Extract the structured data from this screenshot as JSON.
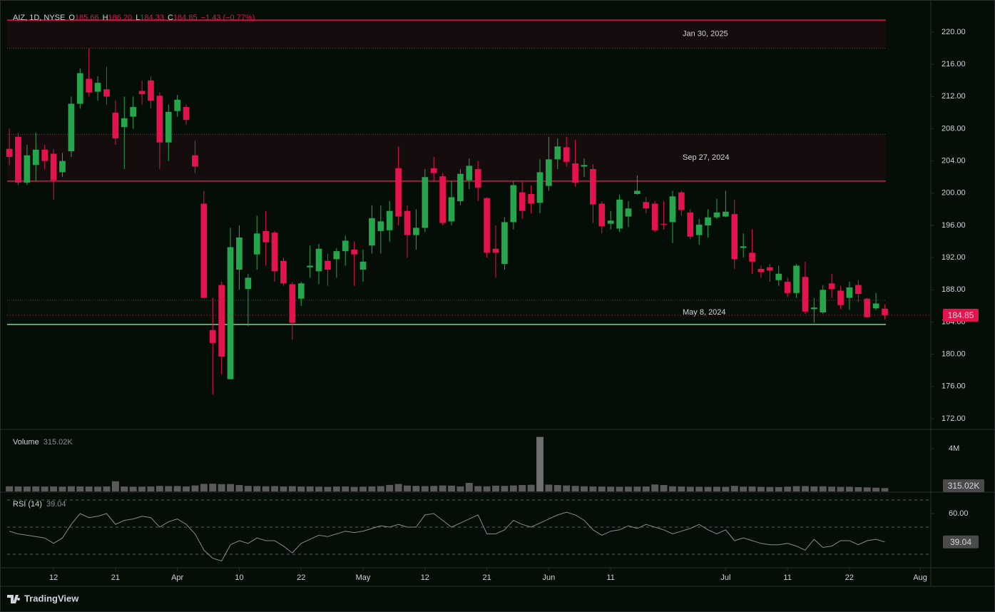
{
  "brand": "TradingView",
  "legend": {
    "symbol": "AIZ, 1D, NYSE",
    "keys": [
      "O",
      "H",
      "L",
      "C"
    ],
    "open": "185.66",
    "high": "186.20",
    "low": "184.33",
    "close": "184.85",
    "change": "−1.43 (−0.77%)"
  },
  "chart_data": [
    {
      "type": "candlestick",
      "up_color": "#26a64c",
      "down_color": "#e3134d",
      "open": [
        205.5,
        207,
        201.3,
        203.5,
        205.4,
        204.9,
        202.6,
        205.2,
        211.1,
        214.2,
        212.6,
        212.9,
        210,
        208.2,
        209.5,
        212.7,
        214,
        212.1,
        206.3,
        210.2,
        210.7,
        204.7,
        198.7,
        183,
        188.6,
        176.9,
        190.5,
        188.1,
        192.4,
        195.3,
        195.1,
        191.6,
        188.7,
        186.9,
        190.8,
        190.3,
        191.6,
        191.8,
        192.8,
        193,
        190.5,
        193.5,
        195.3,
        195.4,
        203.1,
        197.8,
        194.8,
        195.7,
        203.1,
        202.1,
        196.5,
        199,
        201.6,
        203,
        199.4,
        193.1,
        191.2,
        196.4,
        200.1,
        199.9,
        198.8,
        200.9,
        204.2,
        205.7,
        203.7,
        203.3,
        203,
        198.7,
        196.2,
        195.6,
        197.1,
        199.9,
        198.9,
        198.7,
        196.2,
        196.4,
        200.1,
        197.6,
        194.8,
        196,
        197,
        197.1,
        197.4,
        193.2,
        192.6,
        190.6,
        190.8,
        189.2,
        189,
        187.6,
        189.6,
        185.6,
        185.2,
        188.8,
        187.9,
        187,
        188.6,
        186.9,
        185.7,
        185.66
      ],
      "high": [
        208,
        207.5,
        206,
        207.5,
        206,
        205.5,
        205,
        212,
        215.5,
        218,
        214.5,
        215.7,
        211.5,
        212,
        212,
        214,
        214.5,
        212.5,
        211,
        212.2,
        211,
        206.5,
        200.3,
        187,
        189,
        195.7,
        196,
        190,
        197.2,
        197.8,
        195.3,
        192,
        189,
        189,
        193.5,
        193.7,
        192.5,
        193.2,
        194.7,
        194,
        193,
        198.5,
        198.5,
        199,
        205.8,
        198.5,
        198,
        203,
        204.5,
        202.5,
        201.5,
        203,
        204.3,
        204,
        199.5,
        196,
        197,
        201.5,
        201.5,
        201,
        204.2,
        207,
        206.8,
        207,
        206.6,
        204.3,
        203.6,
        199,
        197.8,
        199.8,
        199,
        202.2,
        199.5,
        199,
        199,
        200.3,
        200.3,
        198,
        196.8,
        198,
        199.3,
        200.3,
        199.2,
        195,
        195.5,
        191,
        191.2,
        191,
        189.5,
        191.2,
        191.5,
        187,
        188.6,
        190,
        188.5,
        189,
        189.2,
        187,
        187.6,
        186.2
      ],
      "low": [
        203.5,
        201,
        201,
        201.5,
        203,
        199.2,
        202,
        204.5,
        210.5,
        212,
        211.5,
        211,
        206,
        203,
        208,
        211,
        210.5,
        203,
        204,
        209.5,
        208.5,
        202.5,
        187,
        175,
        177.5,
        176.9,
        188,
        183.5,
        190.5,
        191,
        189,
        188.5,
        181.8,
        186,
        189.5,
        188.7,
        188.5,
        189.5,
        191,
        188.5,
        189,
        192.5,
        192.5,
        194,
        196,
        192,
        193,
        195.2,
        201.5,
        196,
        196,
        198.5,
        200.5,
        199,
        192,
        189.5,
        190.5,
        195.5,
        196.8,
        197.5,
        197.5,
        200.3,
        203,
        203.3,
        200.8,
        202,
        196.3,
        195,
        195.5,
        195.2,
        195.8,
        199.8,
        197.5,
        195.2,
        195.5,
        193.8,
        197.2,
        194.3,
        193.6,
        194.5,
        196.8,
        197,
        190.6,
        192,
        190,
        189.5,
        189,
        188.5,
        187.1,
        187,
        185,
        183.9,
        185,
        187,
        185.6,
        185.5,
        186.5,
        184.6,
        185.5,
        184.33
      ],
      "close": [
        204.5,
        201.3,
        204.7,
        205.4,
        204,
        201.6,
        204,
        211.1,
        214.9,
        212.5,
        213.7,
        212,
        206.8,
        209.3,
        210.7,
        212.3,
        211.5,
        206.3,
        210.1,
        211.6,
        209.1,
        203.3,
        187,
        181.4,
        179.7,
        193.3,
        194.5,
        189.5,
        195,
        193.9,
        190.3,
        188.8,
        183.9,
        188.8,
        191,
        193.1,
        190.5,
        192.8,
        194.1,
        192.4,
        191.5,
        196.9,
        196.5,
        197.8,
        197.1,
        194.8,
        195.7,
        202,
        202.5,
        196.3,
        199.5,
        202.4,
        203.4,
        200.7,
        192.6,
        192.6,
        196.4,
        201,
        197.8,
        198.7,
        202.6,
        204.2,
        205.8,
        203.9,
        201.3,
        203.5,
        198.6,
        195.9,
        196.6,
        199.2,
        198.1,
        200.3,
        198.1,
        195.4,
        196.1,
        199.6,
        197.9,
        194.6,
        196.1,
        197,
        197.6,
        197.7,
        191.8,
        193.4,
        191.5,
        190.2,
        190.4,
        190,
        187.6,
        191,
        185.3,
        185.8,
        188,
        188.1,
        186.1,
        188.3,
        187.5,
        184.6,
        186.3,
        184.85
      ],
      "ylim": [
        170.67,
        223.1
      ],
      "yticks": [
        {
          "value": 172,
          "label": "172.00"
        },
        {
          "value": 176,
          "label": "176.00"
        },
        {
          "value": 180,
          "label": "180.00"
        },
        {
          "value": 184,
          "label": "184.00"
        },
        {
          "value": 188,
          "label": "188.00"
        },
        {
          "value": 192,
          "label": "192.00"
        },
        {
          "value": 196,
          "label": "196.00"
        },
        {
          "value": 200,
          "label": "200.00"
        },
        {
          "value": 204,
          "label": "204.00"
        },
        {
          "value": 208,
          "label": "208.00"
        },
        {
          "value": 212,
          "label": "212.00"
        },
        {
          "value": 216,
          "label": "216.00"
        },
        {
          "value": 220,
          "label": "220.00"
        }
      ],
      "zones": [
        {
          "label": "Jan 30, 2025",
          "top": 221.5,
          "bottom": 218,
          "color": "#e3134d",
          "solid_edge": "top",
          "fill": "#150d0d"
        },
        {
          "label": "Sep 27, 2024",
          "top": 207.3,
          "bottom": 201.5,
          "color": "#e3134d",
          "solid_edge": "bottom",
          "fill": "#150d0d"
        },
        {
          "label": "May 8, 2024",
          "top": 186.7,
          "bottom": 183.7,
          "color": "#7fd08f",
          "solid_edge": "bottom",
          "fill": "#061008"
        }
      ]
    },
    {
      "type": "bar",
      "title": "Volume",
      "color": "#5a5a5a",
      "values": [
        480000,
        470000,
        460000,
        470000,
        460000,
        470000,
        450000,
        480000,
        470000,
        460000,
        450000,
        470000,
        950000,
        460000,
        440000,
        450000,
        470000,
        520000,
        500000,
        510000,
        470000,
        560000,
        700000,
        720000,
        680000,
        690000,
        600000,
        520000,
        500000,
        480000,
        500000,
        470000,
        490000,
        460000,
        470000,
        450000,
        430000,
        460000,
        470000,
        430000,
        450000,
        470000,
        500000,
        610000,
        700000,
        550000,
        520000,
        500000,
        520000,
        560000,
        540000,
        470000,
        800000,
        500000,
        480000,
        540000,
        520000,
        560000,
        600000,
        620000,
        5100000,
        640000,
        600000,
        560000,
        520000,
        480000,
        460000,
        460000,
        450000,
        440000,
        450000,
        450000,
        460000,
        650000,
        600000,
        480000,
        460000,
        440000,
        440000,
        430000,
        440000,
        430000,
        520000,
        450000,
        460000,
        430000,
        420000,
        410000,
        450000,
        490000,
        500000,
        470000,
        480000,
        450000,
        430000,
        440000,
        400000,
        380000,
        350000,
        315020
      ],
      "value_label": "315.02K",
      "ylim": [
        0,
        5670000
      ],
      "yticks": [
        {
          "value": 4000000,
          "label": "4M"
        }
      ]
    },
    {
      "type": "line",
      "title": "RSI (14)",
      "color": "#8a8a8a",
      "values": [
        47,
        45,
        44,
        43,
        42,
        38,
        42,
        52,
        60,
        57,
        58,
        60,
        52,
        55,
        56,
        58,
        57,
        50,
        54,
        56,
        52,
        45,
        33,
        27,
        25,
        37,
        40,
        38,
        42,
        40,
        40,
        36,
        31,
        38,
        41,
        44,
        43,
        45,
        47,
        46,
        47,
        49,
        51,
        50,
        52,
        50,
        50,
        59,
        60,
        55,
        50,
        53,
        56,
        59,
        45,
        45,
        48,
        55,
        52,
        50,
        53,
        56,
        59,
        61,
        59,
        55,
        48,
        44,
        47,
        48,
        51,
        49,
        52,
        50,
        48,
        45,
        47,
        49,
        52,
        48,
        45,
        48,
        40,
        42,
        40,
        38,
        37,
        37,
        38,
        36,
        33,
        41,
        35,
        36,
        40,
        40,
        37,
        40,
        41,
        39.04
      ],
      "ylim": [
        20.5,
        75.8
      ],
      "yticks": [
        {
          "value": 60,
          "label": "60.00"
        }
      ],
      "bands": [
        70,
        50,
        30
      ],
      "xlim": [
        -0.25,
        104.2
      ],
      "xticks": [
        {
          "value": 5,
          "label": "12"
        },
        {
          "value": 12,
          "label": "21"
        },
        {
          "value": 19,
          "label": "Apr"
        },
        {
          "value": 26,
          "label": "10"
        },
        {
          "value": 33,
          "label": "22"
        },
        {
          "value": 40,
          "label": "May"
        },
        {
          "value": 47,
          "label": "12"
        },
        {
          "value": 54,
          "label": "21"
        },
        {
          "value": 61,
          "label": "Jun"
        },
        {
          "value": 68,
          "label": "11"
        },
        {
          "value": 81,
          "label": "Jul"
        },
        {
          "value": 88,
          "label": "11"
        },
        {
          "value": 95,
          "label": "22"
        },
        {
          "value": 103,
          "label": "Aug"
        }
      ]
    }
  ]
}
